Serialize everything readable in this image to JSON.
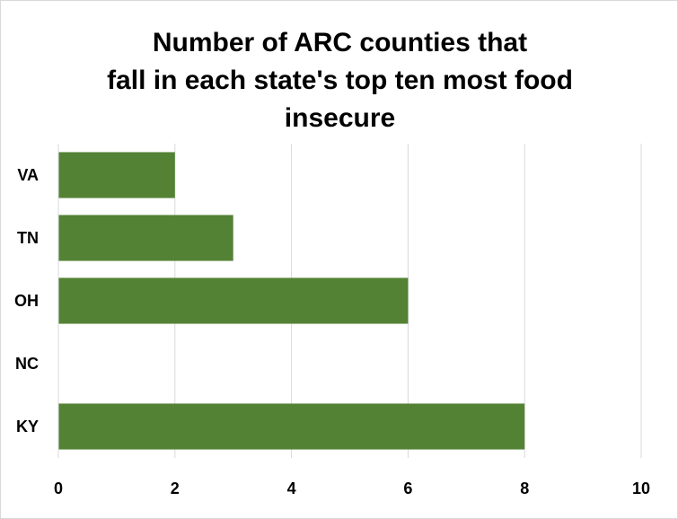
{
  "chart_data": {
    "type": "bar",
    "orientation": "horizontal",
    "title_lines": [
      "Number of ARC counties that",
      "fall in each state's top ten most food",
      "insecure"
    ],
    "categories": [
      "VA",
      "TN",
      "OH",
      "NC",
      "KY"
    ],
    "values": [
      2,
      3,
      6,
      0,
      8
    ],
    "xlim": [
      0,
      10
    ],
    "x_ticks": [
      "0",
      "2",
      "4",
      "6",
      "8",
      "10"
    ],
    "xlabel": "",
    "ylabel": "",
    "grid": "vertical",
    "legend": "none",
    "bar_color": "#548235",
    "grid_color": "#d9d9d9"
  }
}
